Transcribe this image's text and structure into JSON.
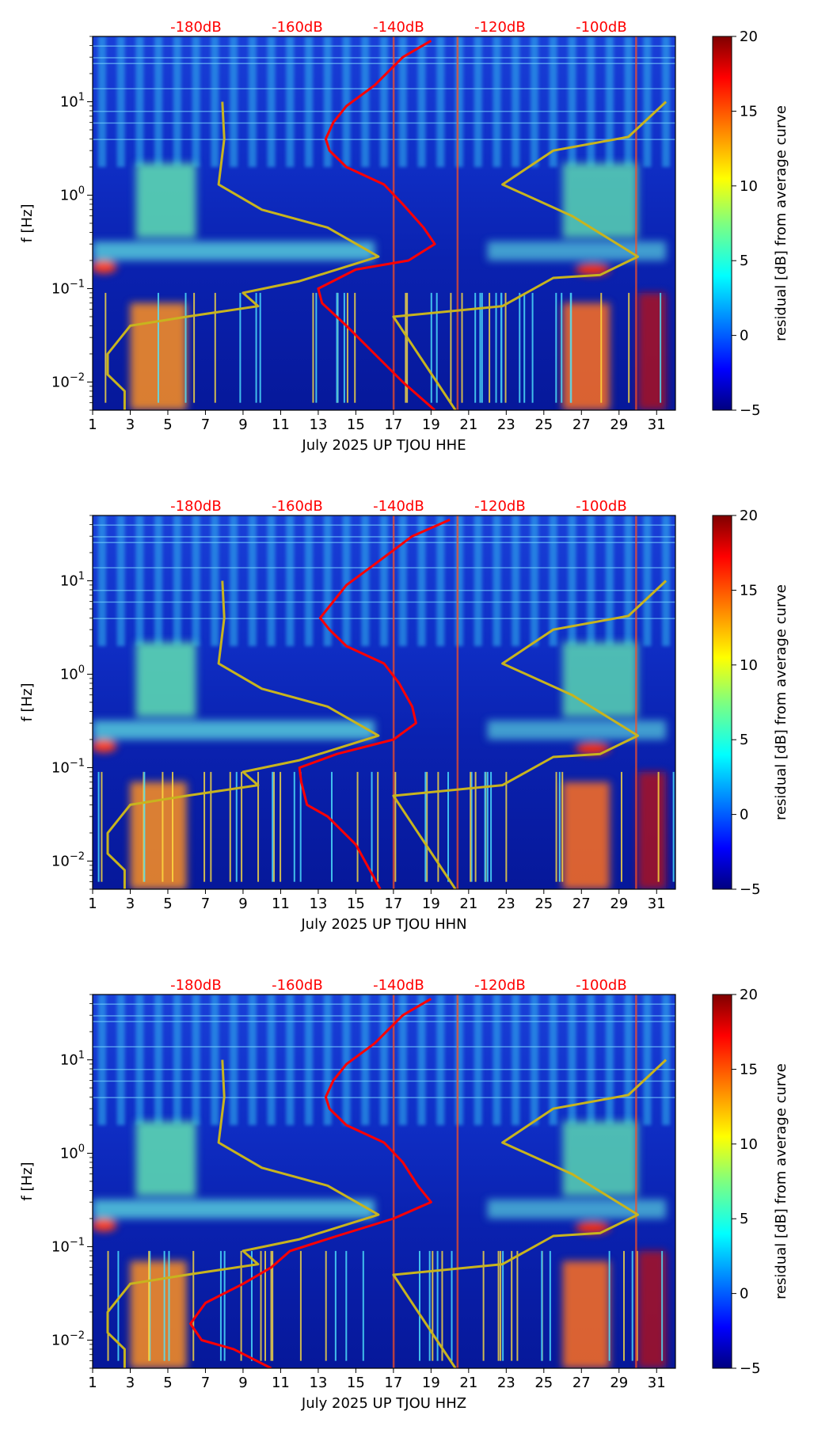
{
  "figure": {
    "colorbar": {
      "label": "residual [dB] from average curve",
      "ticks": [
        -5,
        0,
        5,
        10,
        15,
        20
      ],
      "range": [
        -5,
        20
      ],
      "colormap": "jet"
    },
    "top_axis": {
      "labels": [
        "-180dB",
        "-160dB",
        "-140dB",
        "-120dB",
        "-100dB"
      ],
      "color": "#ff0000"
    }
  },
  "chart_data": [
    {
      "type": "heatmap",
      "xlabel": "July 2025 UP TJOU  HHE",
      "ylabel": "f [Hz]",
      "x_ticks": [
        "1",
        "3",
        "5",
        "7",
        "9",
        "11",
        "13",
        "15",
        "17",
        "19",
        "21",
        "23",
        "25",
        "27",
        "29",
        "31"
      ],
      "xlim": [
        1,
        32
      ],
      "y_scale": "log",
      "y_ticks": [
        "10^-2",
        "10^-1",
        "10^0",
        "10^1"
      ],
      "ylim": [
        0.005,
        50
      ],
      "top_axis_labels": [
        "-180dB",
        "-160dB",
        "-140dB",
        "-120dB",
        "-100dB"
      ],
      "series": [
        {
          "color": "#ff0000",
          "points": [
            [
              19.0,
              45
            ],
            [
              17.5,
              30
            ],
            [
              16.0,
              15
            ],
            [
              14.5,
              9
            ],
            [
              13.8,
              6
            ],
            [
              13.4,
              4
            ],
            [
              13.6,
              3
            ],
            [
              14.5,
              2
            ],
            [
              16.5,
              1.3
            ],
            [
              17.5,
              0.8
            ],
            [
              18.6,
              0.45
            ],
            [
              19.2,
              0.3
            ],
            [
              17.8,
              0.2
            ],
            [
              15.0,
              0.16
            ],
            [
              13.0,
              0.1
            ],
            [
              13.2,
              0.07
            ],
            [
              14.5,
              0.04
            ],
            [
              16.0,
              0.02
            ],
            [
              17.5,
              0.01
            ],
            [
              19.2,
              0.005
            ]
          ]
        },
        {
          "color": "#c8b41e",
          "points": [
            [
              7.9,
              10
            ],
            [
              8.0,
              4
            ],
            [
              7.7,
              1.3
            ],
            [
              10.0,
              0.7
            ],
            [
              13.5,
              0.45
            ],
            [
              16.2,
              0.22
            ],
            [
              12.0,
              0.12
            ],
            [
              9.0,
              0.09
            ],
            [
              9.8,
              0.065
            ],
            [
              6.0,
              0.05
            ],
            [
              3.0,
              0.04
            ],
            [
              1.8,
              0.02
            ],
            [
              1.8,
              0.012
            ],
            [
              2.7,
              0.008
            ],
            [
              2.7,
              0.005
            ]
          ]
        },
        {
          "color": "#c8b41e",
          "points": [
            [
              20.3,
              0.005
            ],
            [
              17.0,
              0.05
            ],
            [
              22.8,
              0.065
            ],
            [
              25.5,
              0.13
            ],
            [
              28.0,
              0.14
            ],
            [
              30.0,
              0.22
            ],
            [
              26.5,
              0.6
            ],
            [
              22.8,
              1.3
            ],
            [
              25.5,
              3.0
            ],
            [
              29.5,
              4.2
            ],
            [
              31.5,
              10
            ]
          ]
        }
      ]
    },
    {
      "type": "heatmap",
      "xlabel": "July 2025 UP TJOU  HHN",
      "ylabel": "f [Hz]",
      "x_ticks": [
        "1",
        "3",
        "5",
        "7",
        "9",
        "11",
        "13",
        "15",
        "17",
        "19",
        "21",
        "23",
        "25",
        "27",
        "29",
        "31"
      ],
      "xlim": [
        1,
        32
      ],
      "y_scale": "log",
      "y_ticks": [
        "10^-2",
        "10^-1",
        "10^0",
        "10^1"
      ],
      "ylim": [
        0.005,
        50
      ],
      "top_axis_labels": [
        "-180dB",
        "-160dB",
        "-140dB",
        "-120dB",
        "-100dB"
      ],
      "series": [
        {
          "color": "#ff0000",
          "points": [
            [
              20.0,
              45
            ],
            [
              18.0,
              30
            ],
            [
              16.0,
              15
            ],
            [
              14.5,
              9
            ],
            [
              13.8,
              6
            ],
            [
              13.1,
              4
            ],
            [
              13.6,
              3
            ],
            [
              14.5,
              2
            ],
            [
              16.5,
              1.3
            ],
            [
              17.3,
              0.8
            ],
            [
              18.0,
              0.45
            ],
            [
              18.2,
              0.3
            ],
            [
              17.0,
              0.2
            ],
            [
              14.0,
              0.14
            ],
            [
              12.0,
              0.1
            ],
            [
              12.1,
              0.07
            ],
            [
              12.4,
              0.04
            ],
            [
              13.5,
              0.03
            ],
            [
              15.0,
              0.015
            ],
            [
              16.3,
              0.005
            ]
          ]
        },
        {
          "color": "#c8b41e",
          "points": [
            [
              7.9,
              10
            ],
            [
              8.0,
              4
            ],
            [
              7.7,
              1.3
            ],
            [
              10.0,
              0.7
            ],
            [
              13.5,
              0.45
            ],
            [
              16.2,
              0.22
            ],
            [
              12.0,
              0.12
            ],
            [
              9.0,
              0.09
            ],
            [
              9.8,
              0.065
            ],
            [
              6.0,
              0.05
            ],
            [
              3.0,
              0.04
            ],
            [
              1.8,
              0.02
            ],
            [
              1.8,
              0.012
            ],
            [
              2.7,
              0.008
            ],
            [
              2.7,
              0.005
            ]
          ]
        },
        {
          "color": "#c8b41e",
          "points": [
            [
              20.3,
              0.005
            ],
            [
              17.0,
              0.05
            ],
            [
              22.8,
              0.065
            ],
            [
              25.5,
              0.13
            ],
            [
              28.0,
              0.14
            ],
            [
              30.0,
              0.22
            ],
            [
              26.5,
              0.6
            ],
            [
              22.8,
              1.3
            ],
            [
              25.5,
              3.0
            ],
            [
              29.5,
              4.2
            ],
            [
              31.5,
              10
            ]
          ]
        }
      ]
    },
    {
      "type": "heatmap",
      "xlabel": "July 2025 UP TJOU  HHZ",
      "ylabel": "f [Hz]",
      "x_ticks": [
        "1",
        "3",
        "5",
        "7",
        "9",
        "11",
        "13",
        "15",
        "17",
        "19",
        "21",
        "23",
        "25",
        "27",
        "29",
        "31"
      ],
      "xlim": [
        1,
        32
      ],
      "y_scale": "log",
      "y_ticks": [
        "10^-2",
        "10^-1",
        "10^0",
        "10^1"
      ],
      "ylim": [
        0.005,
        50
      ],
      "top_axis_labels": [
        "-180dB",
        "-160dB",
        "-140dB",
        "-120dB",
        "-100dB"
      ],
      "series": [
        {
          "color": "#ff0000",
          "points": [
            [
              19.0,
              45
            ],
            [
              17.5,
              30
            ],
            [
              16.0,
              15
            ],
            [
              14.5,
              9
            ],
            [
              13.8,
              6
            ],
            [
              13.4,
              4
            ],
            [
              13.6,
              3
            ],
            [
              14.5,
              2
            ],
            [
              16.5,
              1.3
            ],
            [
              17.5,
              0.8
            ],
            [
              18.3,
              0.45
            ],
            [
              19.0,
              0.3
            ],
            [
              17.0,
              0.2
            ],
            [
              14.0,
              0.13
            ],
            [
              11.5,
              0.09
            ],
            [
              10.5,
              0.06
            ],
            [
              9.0,
              0.04
            ],
            [
              7.0,
              0.025
            ],
            [
              6.2,
              0.015
            ],
            [
              6.8,
              0.01
            ],
            [
              8.5,
              0.008
            ],
            [
              10.5,
              0.005
            ]
          ]
        },
        {
          "color": "#c8b41e",
          "points": [
            [
              7.9,
              10
            ],
            [
              8.0,
              4
            ],
            [
              7.7,
              1.3
            ],
            [
              10.0,
              0.7
            ],
            [
              13.5,
              0.45
            ],
            [
              16.2,
              0.22
            ],
            [
              12.0,
              0.12
            ],
            [
              9.0,
              0.09
            ],
            [
              9.8,
              0.065
            ],
            [
              6.0,
              0.05
            ],
            [
              3.0,
              0.04
            ],
            [
              1.8,
              0.02
            ],
            [
              1.8,
              0.012
            ],
            [
              2.7,
              0.008
            ],
            [
              2.7,
              0.005
            ]
          ]
        },
        {
          "color": "#c8b41e",
          "points": [
            [
              20.3,
              0.005
            ],
            [
              17.0,
              0.05
            ],
            [
              22.8,
              0.065
            ],
            [
              25.5,
              0.13
            ],
            [
              28.0,
              0.14
            ],
            [
              30.0,
              0.22
            ],
            [
              26.5,
              0.6
            ],
            [
              22.8,
              1.3
            ],
            [
              25.5,
              3.0
            ],
            [
              29.5,
              4.2
            ],
            [
              31.5,
              10
            ]
          ]
        }
      ]
    }
  ]
}
